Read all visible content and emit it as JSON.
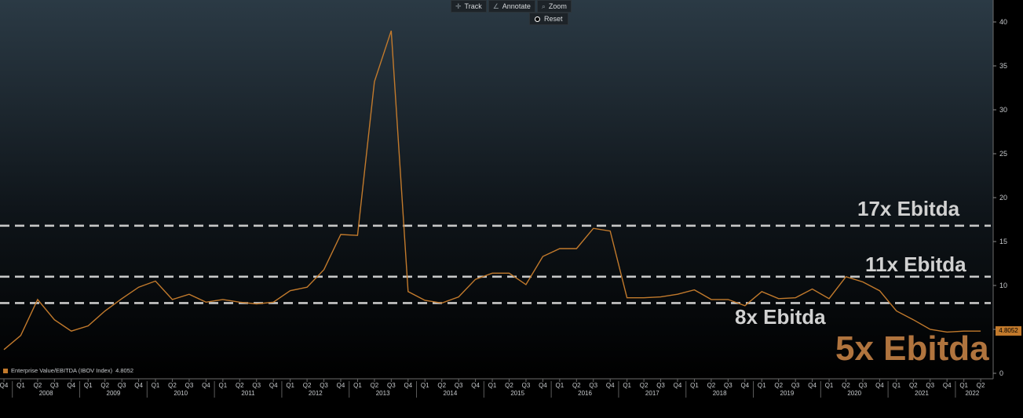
{
  "toolbar": {
    "track_label": "Track",
    "annotate_label": "Annotate",
    "zoom_label": "Zoom",
    "reset_label": "Reset",
    "icons": [
      "crosshair-icon",
      "pencil-icon",
      "magnifier-icon",
      "radio-icon"
    ]
  },
  "legend": {
    "label": "Enterprise Value/EBITDA (IBOV Index)",
    "last_value": "4.8052",
    "color": "#c27a2c"
  },
  "last_value_tag": "4.8052",
  "annotations": {
    "ebitda_17": "17x Ebitda",
    "ebitda_11": "11x Ebitda",
    "ebitda_8": "8x Ebitda",
    "ebitda_5": "5x Ebitda"
  },
  "colors": {
    "series": "#c27a2c",
    "reference_lines": "#c8c8c8",
    "highlight_5x": "#b0743e",
    "background_top": "#2b3a45",
    "background_bottom": "#000000"
  },
  "chart_data": {
    "type": "line",
    "title": "",
    "xlabel": "",
    "ylabel": "",
    "ylim": [
      0,
      42
    ],
    "y_ticks": [
      0,
      5,
      10,
      15,
      20,
      25,
      30,
      35,
      40
    ],
    "y_axis_position": "right",
    "grid": false,
    "legend_position": "bottom-left",
    "x": [
      "Q4 2007",
      "Q1 2008",
      "Q2 2008",
      "Q3 2008",
      "Q4 2008",
      "Q1 2009",
      "Q2 2009",
      "Q3 2009",
      "Q4 2009",
      "Q1 2010",
      "Q2 2010",
      "Q3 2010",
      "Q4 2010",
      "Q1 2011",
      "Q2 2011",
      "Q3 2011",
      "Q4 2011",
      "Q1 2012",
      "Q2 2012",
      "Q3 2012",
      "Q4 2012",
      "Q1 2013",
      "Q2 2013",
      "Q3 2013",
      "Q4 2013",
      "Q1 2014",
      "Q2 2014",
      "Q3 2014",
      "Q4 2014",
      "Q1 2015",
      "Q2 2015",
      "Q3 2015",
      "Q4 2015",
      "Q1 2016",
      "Q2 2016",
      "Q3 2016",
      "Q4 2016",
      "Q1 2017",
      "Q2 2017",
      "Q3 2017",
      "Q4 2017",
      "Q1 2018",
      "Q2 2018",
      "Q3 2018",
      "Q4 2018",
      "Q1 2019",
      "Q2 2019",
      "Q3 2019",
      "Q4 2019",
      "Q1 2020",
      "Q2 2020",
      "Q3 2020",
      "Q4 2020",
      "Q1 2021",
      "Q2 2021",
      "Q3 2021",
      "Q4 2021",
      "Q1 2022",
      "Q2 2022"
    ],
    "x_tick_labels": [
      "Q4",
      "Q1",
      "Q2",
      "Q3",
      "Q4",
      "Q1",
      "Q2",
      "Q3",
      "Q4",
      "Q1",
      "Q2",
      "Q3",
      "Q4",
      "Q1",
      "Q2",
      "Q3",
      "Q4",
      "Q1",
      "Q2",
      "Q3",
      "Q4",
      "Q1",
      "Q2",
      "Q3",
      "Q4",
      "Q1",
      "Q2",
      "Q3",
      "Q4",
      "Q1",
      "Q2",
      "Q3",
      "Q4",
      "Q1",
      "Q2",
      "Q3",
      "Q4",
      "Q1",
      "Q2",
      "Q3",
      "Q4",
      "Q1",
      "Q2",
      "Q3",
      "Q4",
      "Q1",
      "Q2",
      "Q3",
      "Q4",
      "Q1",
      "Q2",
      "Q3",
      "Q4",
      "Q1",
      "Q2",
      "Q3",
      "Q4",
      "Q1",
      "Q2"
    ],
    "year_labels": [
      {
        "label": "2008",
        "first": 1,
        "last": 4
      },
      {
        "label": "2009",
        "first": 5,
        "last": 8
      },
      {
        "label": "2010",
        "first": 9,
        "last": 12
      },
      {
        "label": "2011",
        "first": 13,
        "last": 16
      },
      {
        "label": "2012",
        "first": 17,
        "last": 20
      },
      {
        "label": "2013",
        "first": 21,
        "last": 24
      },
      {
        "label": "2014",
        "first": 25,
        "last": 28
      },
      {
        "label": "2015",
        "first": 29,
        "last": 32
      },
      {
        "label": "2016",
        "first": 33,
        "last": 36
      },
      {
        "label": "2017",
        "first": 37,
        "last": 40
      },
      {
        "label": "2018",
        "first": 41,
        "last": 44
      },
      {
        "label": "2019",
        "first": 45,
        "last": 48
      },
      {
        "label": "2020",
        "first": 49,
        "last": 52
      },
      {
        "label": "2021",
        "first": 53,
        "last": 56
      },
      {
        "label": "2022",
        "first": 57,
        "last": 58
      }
    ],
    "series": [
      {
        "name": "Enterprise Value/EBITDA (IBOV Index)",
        "color": "#c27a2c",
        "values": [
          2.7,
          4.3,
          8.4,
          6.1,
          4.8,
          5.4,
          7.1,
          8.5,
          9.8,
          10.5,
          8.4,
          9.0,
          8.1,
          8.4,
          8.1,
          7.9,
          8.1,
          9.4,
          9.8,
          11.8,
          15.8,
          15.7,
          33.2,
          39.0,
          9.3,
          8.3,
          8.0,
          8.7,
          10.7,
          11.4,
          11.4,
          10.1,
          13.3,
          14.2,
          14.2,
          16.5,
          16.2,
          8.6,
          8.6,
          8.7,
          9.0,
          9.5,
          8.4,
          8.4,
          7.7,
          9.3,
          8.5,
          8.6,
          9.6,
          8.5,
          11.0,
          10.4,
          9.4,
          7.1,
          6.1,
          5.0,
          4.7,
          4.8,
          4.8052
        ]
      }
    ],
    "reference_lines": [
      {
        "y": 16.8,
        "label": "17x Ebitda"
      },
      {
        "y": 11.0,
        "label": "11x Ebitda"
      },
      {
        "y": 8.0,
        "label": "8x Ebitda"
      }
    ]
  }
}
